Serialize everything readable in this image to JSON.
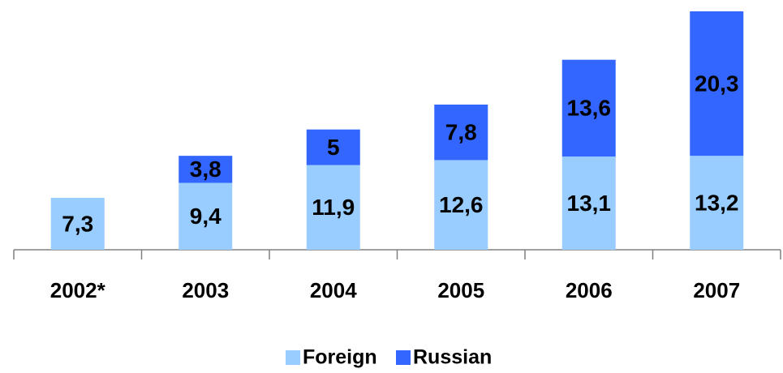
{
  "chart_data": {
    "type": "stacked_bar",
    "categories": [
      "2002*",
      "2003",
      "2004",
      "2005",
      "2006",
      "2007"
    ],
    "series": [
      {
        "name": "Foreign",
        "color": "#99ccff",
        "values": [
          7.3,
          9.4,
          11.9,
          12.6,
          13.1,
          13.2
        ],
        "value_labels": [
          "7,3",
          "9,4",
          "11,9",
          "12,6",
          "13,1",
          "13,2"
        ]
      },
      {
        "name": "Russian",
        "color": "#3366ff",
        "values": [
          null,
          3.8,
          5,
          7.8,
          13.6,
          20.3
        ],
        "value_labels": [
          null,
          "3,8",
          "5",
          "7,8",
          "13,6",
          "20,3"
        ]
      }
    ],
    "legend": "bottom"
  }
}
